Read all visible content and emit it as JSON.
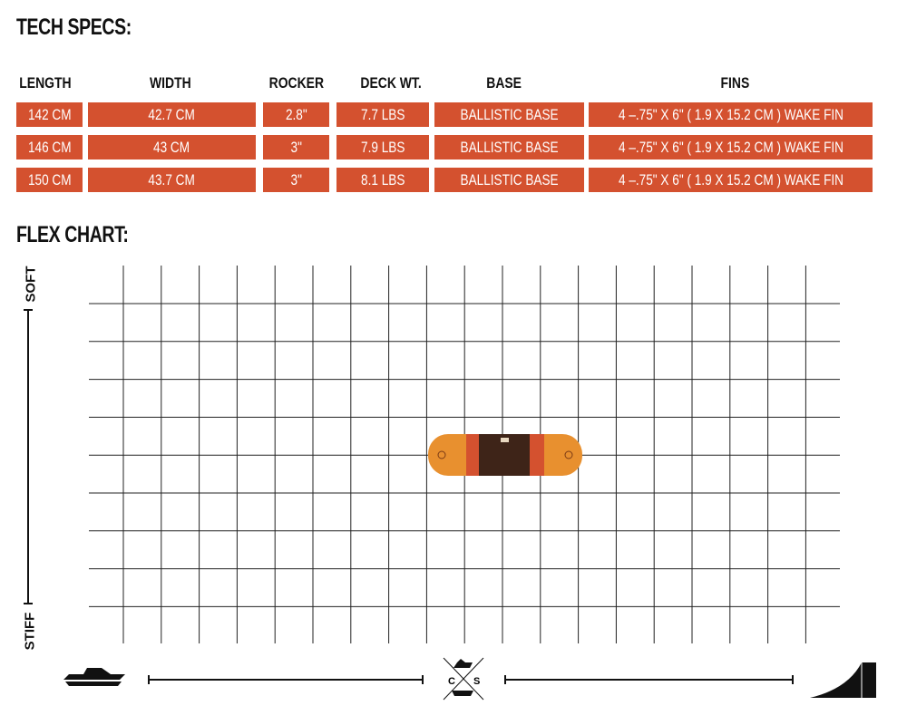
{
  "tech_specs": {
    "title": "TECH SPECS:",
    "headers": [
      "LENGTH",
      "WIDTH",
      "ROCKER",
      "DECK WT.",
      "BASE",
      "FINS"
    ],
    "rows": [
      [
        "142 CM",
        "42.7 CM",
        "2.8\"",
        "7.7 LBS",
        "BALLISTIC BASE",
        "4 –.75\" X 6\" ( 1.9 X 15.2 CM ) WAKE FIN"
      ],
      [
        "146 CM",
        "43 CM",
        "3\"",
        "7.9 LBS",
        "BALLISTIC BASE",
        "4 –.75\" X 6\" ( 1.9 X 15.2 CM ) WAKE FIN"
      ],
      [
        "150 CM",
        "43.7 CM",
        "3\"",
        "8.1 LBS",
        "BALLISTIC BASE",
        "4 –.75\" X 6\" ( 1.9 X 15.2 CM ) WAKE FIN"
      ]
    ],
    "row_color": "#d4512f"
  },
  "flex_chart": {
    "title": "FLEX CHART:",
    "y_axis": {
      "top_label": "SOFT",
      "bottom_label": "STIFF"
    },
    "x_axis": {
      "left_icon": "boat-icon",
      "center_left_letter": "C",
      "center_right_letter": "S",
      "right_icon": "kicker-ramp-icon"
    },
    "board_icon": "wakeboard-icon",
    "board_colors": [
      "#e8902f",
      "#e0782c",
      "#d4512f",
      "#3e2418"
    ]
  }
}
